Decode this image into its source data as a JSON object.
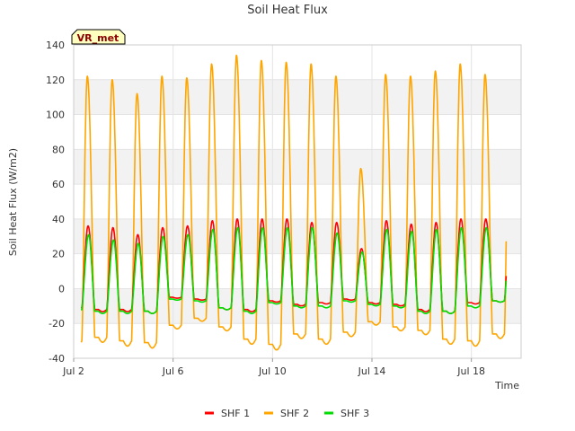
{
  "chart_data": {
    "type": "line",
    "title": "Soil Heat Flux",
    "xlabel": "Time",
    "ylabel": "Soil Heat Flux (W/m2)",
    "badge": "VR_met",
    "ylim": [
      -40,
      140
    ],
    "xlim_days": [
      2.0,
      20.0
    ],
    "y_ticks": [
      -40,
      -20,
      0,
      20,
      40,
      60,
      80,
      100,
      120,
      140
    ],
    "x_ticks": [
      {
        "day": 2,
        "label": "Jul 2"
      },
      {
        "day": 6,
        "label": "Jul 6"
      },
      {
        "day": 10,
        "label": "Jul 10"
      },
      {
        "day": 14,
        "label": "Jul 14"
      },
      {
        "day": 18,
        "label": "Jul 18"
      }
    ],
    "grid": true,
    "legend_position": "bottom",
    "data_start_day": 2.3,
    "data_end_day": 19.4,
    "series": [
      {
        "name": "SHF 1",
        "color": "#ff0000",
        "peak_time": 0.58,
        "peaks": [
          36,
          35,
          31,
          35,
          36,
          39,
          40,
          40,
          40,
          38,
          38,
          23,
          39,
          37,
          38,
          40,
          40
        ],
        "troughs": [
          -11,
          -12,
          -12,
          -13,
          -5,
          -6,
          -11,
          -12,
          -7,
          -9,
          -8,
          -6,
          -8,
          -9,
          -12,
          -13,
          -8,
          -7
        ]
      },
      {
        "name": "SHF 2",
        "color": "#ffa500",
        "peak_time": 0.55,
        "peaks": [
          122,
          120,
          112,
          122,
          121,
          129,
          134,
          131,
          130,
          129,
          122,
          69,
          123,
          122,
          125,
          129,
          123
        ],
        "troughs": [
          -30,
          -28,
          -30,
          -31,
          -21,
          -17,
          -22,
          -29,
          -32,
          -26,
          -29,
          -25,
          -19,
          -22,
          -24,
          -29,
          -30,
          -26
        ]
      },
      {
        "name": "SHF 3",
        "color": "#00dd00",
        "peak_time": 0.6,
        "peaks": [
          31,
          28,
          26,
          30,
          31,
          34,
          35,
          35,
          35,
          35,
          32,
          21,
          34,
          33,
          34,
          35,
          35
        ],
        "troughs": [
          -12,
          -13,
          -13,
          -13,
          -6,
          -7,
          -11,
          -13,
          -8,
          -10,
          -10,
          -7,
          -9,
          -10,
          -13,
          -13,
          -10,
          -7
        ]
      }
    ]
  }
}
